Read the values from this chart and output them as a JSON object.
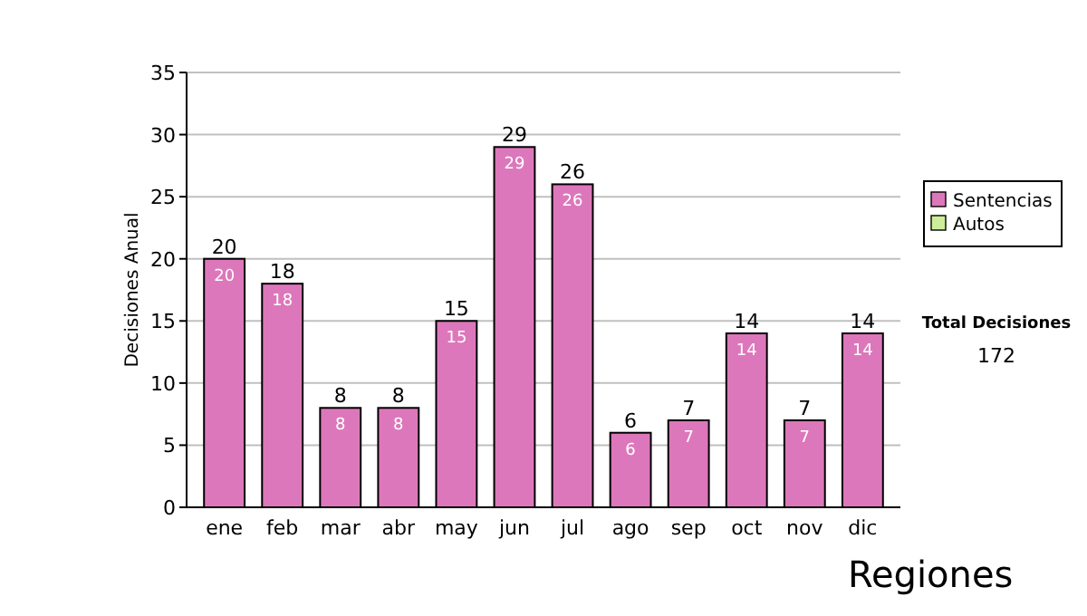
{
  "chart_data": {
    "type": "bar",
    "ylabel": "Decisiones Anual",
    "categories": [
      "ene",
      "feb",
      "mar",
      "abr",
      "may",
      "jun",
      "jul",
      "ago",
      "sep",
      "oct",
      "nov",
      "dic"
    ],
    "series": [
      {
        "name": "Sentencias",
        "color": "#dd77bb",
        "values": [
          20,
          18,
          8,
          8,
          15,
          29,
          26,
          6,
          7,
          14,
          7,
          14
        ],
        "value_labels": [
          "20",
          "18",
          "8",
          "8",
          "15",
          "29",
          "26",
          "6",
          "7",
          "14",
          "7",
          "14"
        ]
      },
      {
        "name": "Autos",
        "color": "#ccee99",
        "values": [
          0,
          0,
          0,
          0,
          0,
          0,
          0,
          0,
          0,
          0,
          0,
          0
        ]
      }
    ],
    "totals": [
      "20",
      "18",
      "8",
      "8",
      "15",
      "29",
      "26",
      "6",
      "7",
      "14",
      "7",
      "14"
    ],
    "ylim": [
      0,
      35
    ],
    "yticks": [
      0,
      5,
      10,
      15,
      20,
      25,
      30,
      35
    ],
    "grid": "y",
    "legend": "right",
    "annotations": [
      "Total Decisiones",
      "172",
      "Regiones"
    ]
  }
}
